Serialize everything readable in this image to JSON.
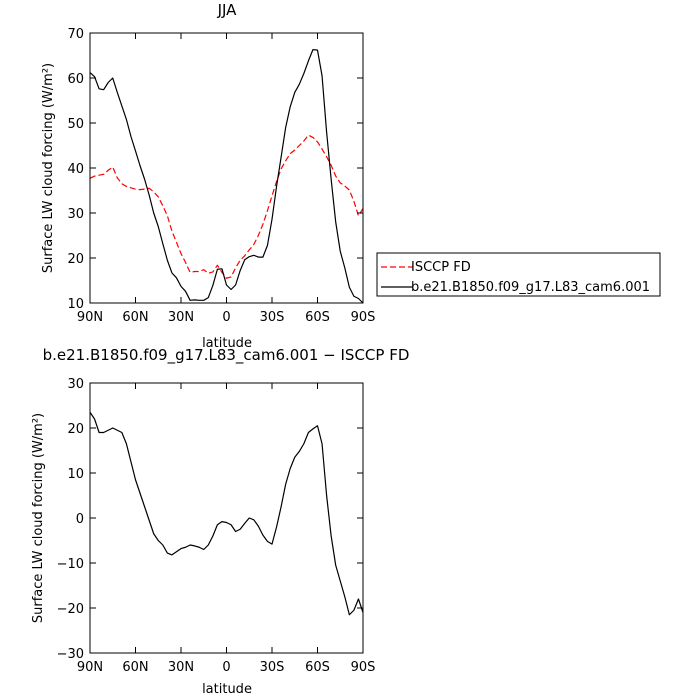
{
  "chart_data": [
    {
      "type": "line",
      "title": "JJA",
      "xlabel": "latitude",
      "ylabel": "Surface LW cloud forcing (W/m²)",
      "xlim": [
        90,
        -90
      ],
      "ylim": [
        10,
        70
      ],
      "xticks": [
        90,
        60,
        30,
        0,
        -30,
        -60,
        -90
      ],
      "xtick_labels": [
        "90N",
        "60N",
        "30N",
        "0",
        "30S",
        "60S",
        "90S"
      ],
      "yticks": [
        10,
        20,
        30,
        40,
        50,
        60,
        70
      ],
      "ytick_labels": [
        "10",
        "20",
        "30",
        "40",
        "50",
        "60",
        "70"
      ],
      "grid": false,
      "legend_position": "right",
      "series": [
        {
          "name": "ISCCP FD",
          "color": "#ff0000",
          "dash": "dashed",
          "x": [
            90,
            87,
            84,
            81,
            78,
            75,
            72,
            69,
            66,
            63,
            60,
            57,
            54,
            51,
            48,
            45,
            42,
            39,
            36,
            33,
            30,
            27,
            24,
            21,
            18,
            15,
            12,
            9,
            6,
            3,
            0,
            -3,
            -6,
            -9,
            -12,
            -15,
            -18,
            -21,
            -24,
            -27,
            -30,
            -33,
            -36,
            -39,
            -42,
            -45,
            -48,
            -51,
            -54,
            -57,
            -60,
            -63,
            -66,
            -69,
            -72,
            -75,
            -78,
            -81,
            -84,
            -87,
            -90
          ],
          "y": [
            37.7,
            38.2,
            38.4,
            38.6,
            39.5,
            40.2,
            37.8,
            36.5,
            35.9,
            35.6,
            35.3,
            35.2,
            35.3,
            35.5,
            34.7,
            33.6,
            31.6,
            29.4,
            26.0,
            23.5,
            21.0,
            19.0,
            16.8,
            17.0,
            17.0,
            17.4,
            16.6,
            16.9,
            18.4,
            16.8,
            15.5,
            15.8,
            17.8,
            19.5,
            20.5,
            21.8,
            23.0,
            25.0,
            27.5,
            30.5,
            33.8,
            37.0,
            39.8,
            41.6,
            43.2,
            44.0,
            45.0,
            46.0,
            47.3,
            46.8,
            45.8,
            44.2,
            42.5,
            40.6,
            38.2,
            36.7,
            36.0,
            35.1,
            32.6,
            29.4,
            31.0
          ]
        },
        {
          "name": "b.e21.B1850.f09_g17.L83_cam6.001",
          "color": "#000000",
          "dash": "solid",
          "x": [
            90,
            87,
            84,
            81,
            78,
            75,
            72,
            69,
            66,
            63,
            60,
            57,
            54,
            51,
            48,
            45,
            42,
            39,
            36,
            33,
            30,
            27,
            24,
            21,
            18,
            15,
            12,
            9,
            6,
            3,
            0,
            -3,
            -6,
            -9,
            -12,
            -15,
            -18,
            -21,
            -24,
            -27,
            -30,
            -33,
            -36,
            -39,
            -42,
            -45,
            -48,
            -51,
            -54,
            -57,
            -60,
            -63,
            -66,
            -69,
            -72,
            -75,
            -78,
            -81,
            -84,
            -87,
            -90
          ],
          "y": [
            61.2,
            60.3,
            57.6,
            57.4,
            59.0,
            60.0,
            56.8,
            53.8,
            50.8,
            47.0,
            43.8,
            40.5,
            37.5,
            34.0,
            30.0,
            27.0,
            23.2,
            19.5,
            16.7,
            15.6,
            13.7,
            12.6,
            10.6,
            10.7,
            10.6,
            10.6,
            11.2,
            13.9,
            17.5,
            17.6,
            14.0,
            13.0,
            14.0,
            17.2,
            19.6,
            20.3,
            20.6,
            20.2,
            20.2,
            22.8,
            28.6,
            35.9,
            42.4,
            49.0,
            53.6,
            56.8,
            58.6,
            61.0,
            63.8,
            66.3,
            66.2,
            60.5,
            48.0,
            37.5,
            28.0,
            21.5,
            17.8,
            13.5,
            11.5,
            11.0,
            10.0
          ]
        }
      ]
    },
    {
      "type": "line",
      "title": "b.e21.B1850.f09_g17.L83_cam6.001 − ISCCP FD",
      "xlabel": "latitude",
      "ylabel": "Surface LW cloud forcing (W/m²)",
      "xlim": [
        90,
        -90
      ],
      "ylim": [
        -30,
        30
      ],
      "xticks": [
        90,
        60,
        30,
        0,
        -30,
        -60,
        -90
      ],
      "xtick_labels": [
        "90N",
        "60N",
        "30N",
        "0",
        "30S",
        "60S",
        "90S"
      ],
      "yticks": [
        -30,
        -20,
        -10,
        0,
        10,
        20,
        30
      ],
      "ytick_labels": [
        "−30",
        "−20",
        "−10",
        "0",
        "10",
        "20",
        "30"
      ],
      "grid": false,
      "series": [
        {
          "color": "#000000",
          "dash": "solid",
          "x": [
            90,
            87,
            84,
            81,
            78,
            75,
            72,
            69,
            66,
            63,
            60,
            57,
            54,
            51,
            48,
            45,
            42,
            39,
            36,
            33,
            30,
            27,
            24,
            21,
            18,
            15,
            12,
            9,
            6,
            3,
            0,
            -3,
            -6,
            -9,
            -12,
            -15,
            -18,
            -21,
            -24,
            -27,
            -30,
            -33,
            -36,
            -39,
            -42,
            -45,
            -48,
            -51,
            -54,
            -57,
            -60,
            -63,
            -66,
            -69,
            -72,
            -75,
            -78,
            -81,
            -84,
            -87,
            -90
          ],
          "y": [
            23.5,
            22.0,
            19.0,
            19.0,
            19.5,
            20.0,
            19.5,
            19.0,
            16.5,
            12.5,
            8.5,
            5.5,
            2.5,
            -0.5,
            -3.5,
            -5.0,
            -6.0,
            -7.8,
            -8.2,
            -7.5,
            -6.8,
            -6.5,
            -6.0,
            -6.2,
            -6.5,
            -7.0,
            -6.0,
            -4.0,
            -1.5,
            -0.8,
            -1.0,
            -1.5,
            -3.0,
            -2.5,
            -1.2,
            0.0,
            -0.4,
            -1.8,
            -3.8,
            -5.2,
            -5.8,
            -2.0,
            2.5,
            7.5,
            11.0,
            13.5,
            14.8,
            16.5,
            19.0,
            19.8,
            20.5,
            16.5,
            5.0,
            -4.0,
            -10.5,
            -14.0,
            -17.5,
            -21.5,
            -20.5,
            -18.0,
            -21.0
          ]
        }
      ]
    }
  ]
}
